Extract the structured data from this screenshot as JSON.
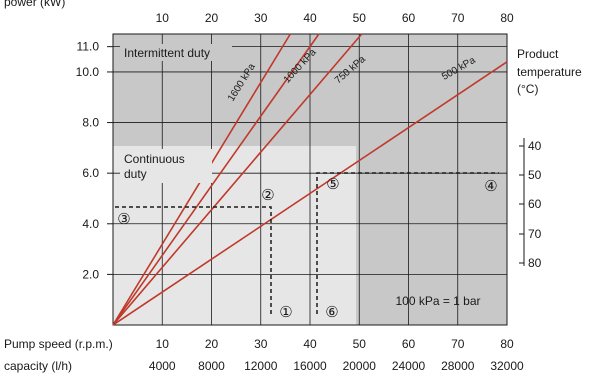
{
  "chart_data": {
    "type": "line",
    "ylabel_top": "power (kW)",
    "top_axis_ticks": [
      "10",
      "20",
      "30",
      "40",
      "50",
      "60",
      "70",
      "80"
    ],
    "y_ticks": [
      "2.0",
      "4.0",
      "6.0",
      "8.0",
      "10.0",
      "11.0"
    ],
    "ylim": [
      0,
      11.5
    ],
    "xlim": [
      0,
      80
    ],
    "series": [
      {
        "name": "1600 kPa",
        "x": [
          0,
          36
        ],
        "y": [
          0,
          11.5
        ]
      },
      {
        "name": "1000 kPa",
        "x": [
          0,
          41.8
        ],
        "y": [
          0,
          11.5
        ]
      },
      {
        "name": "750 kPa",
        "x": [
          0,
          50.5
        ],
        "y": [
          0,
          11.5
        ]
      },
      {
        "name": "500 kPa",
        "x": [
          0,
          80
        ],
        "y": [
          0,
          10.4
        ]
      }
    ],
    "regions": {
      "intermittent": "Intermittent duty",
      "continuous_line1": "Continuous",
      "continuous_line2": "duty"
    },
    "right_axis": {
      "title_line1": "Product",
      "title_line2": "temperature",
      "title_line3": "(°C)",
      "ticks": [
        "40",
        "50",
        "60",
        "70",
        "80"
      ]
    },
    "markers": [
      "①",
      "②",
      "③",
      "④",
      "⑤",
      "⑥"
    ],
    "note": "100 kPa = 1 bar",
    "bottom": {
      "speed_label": "Pump speed (r.p.m.)",
      "speed_ticks": [
        "10",
        "20",
        "30",
        "40",
        "50",
        "60",
        "70",
        "80"
      ],
      "capacity_label": "capacity (l/h)",
      "capacity_ticks": [
        "4000",
        "8000",
        "12000",
        "16000",
        "20000",
        "24000",
        "28000",
        "32000"
      ]
    }
  },
  "colors": {
    "dark_region": "#c8c8c8",
    "light_region": "#e6e6e6",
    "curve": "#c0392b",
    "grid": "#1a1a1a"
  }
}
